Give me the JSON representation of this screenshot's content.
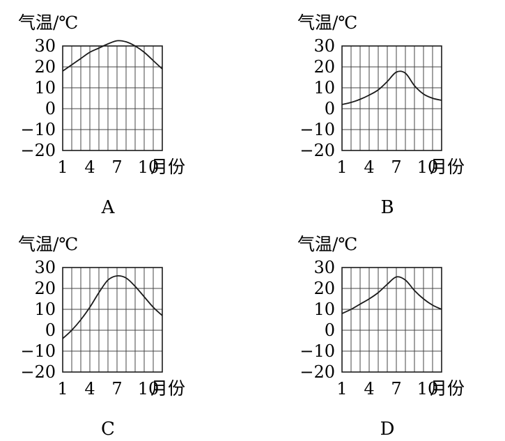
{
  "charts": [
    {
      "label": "A",
      "chart_data": {
        "type": "line",
        "ylabel": "气温/℃",
        "xlabel": "月份",
        "x_ticks": [
          "1",
          "4",
          "7",
          "10"
        ],
        "y_ticks": [
          "30",
          "20",
          "10",
          "0",
          "−10",
          "−20"
        ],
        "xlim": [
          1,
          12
        ],
        "ylim": [
          -20,
          30
        ],
        "grid": true,
        "x": [
          1,
          2,
          3,
          4,
          5,
          6,
          7,
          8,
          9,
          10,
          11,
          12
        ],
        "values": [
          18,
          21,
          24,
          27,
          29,
          31,
          32.5,
          32,
          30,
          27,
          23,
          19
        ]
      }
    },
    {
      "label": "B",
      "chart_data": {
        "type": "line",
        "ylabel": "气温/℃",
        "xlabel": "月份",
        "x_ticks": [
          "1",
          "4",
          "7",
          "10"
        ],
        "y_ticks": [
          "30",
          "20",
          "10",
          "0",
          "−10",
          "−20"
        ],
        "xlim": [
          1,
          12
        ],
        "ylim": [
          -20,
          30
        ],
        "grid": true,
        "x": [
          1,
          2,
          3,
          4,
          5,
          6,
          7,
          8,
          9,
          10,
          11,
          12
        ],
        "values": [
          2,
          3,
          4.5,
          6.5,
          9,
          13,
          17.5,
          17,
          11,
          7,
          5,
          4
        ]
      }
    },
    {
      "label": "C",
      "chart_data": {
        "type": "line",
        "ylabel": "气温/℃",
        "xlabel": "月份",
        "x_ticks": [
          "1",
          "4",
          "7",
          "10"
        ],
        "y_ticks": [
          "30",
          "20",
          "10",
          "0",
          "−10",
          "−20"
        ],
        "xlim": [
          1,
          12
        ],
        "ylim": [
          -20,
          30
        ],
        "grid": true,
        "x": [
          1,
          2,
          3,
          4,
          5,
          6,
          7,
          8,
          9,
          10,
          11,
          12
        ],
        "values": [
          -4,
          0,
          5,
          11,
          18,
          24,
          26,
          25,
          21,
          16,
          11,
          7
        ]
      }
    },
    {
      "label": "D",
      "chart_data": {
        "type": "line",
        "ylabel": "气温/℃",
        "xlabel": "月份",
        "x_ticks": [
          "1",
          "4",
          "7",
          "10"
        ],
        "y_ticks": [
          "30",
          "20",
          "10",
          "0",
          "−10",
          "−20"
        ],
        "xlim": [
          1,
          12
        ],
        "ylim": [
          -20,
          30
        ],
        "grid": true,
        "x": [
          1,
          2,
          3,
          4,
          5,
          6,
          7,
          8,
          9,
          10,
          11,
          12
        ],
        "values": [
          8,
          10,
          12.5,
          15,
          18,
          22,
          25.5,
          24,
          19,
          15,
          12,
          10
        ]
      }
    }
  ],
  "colors": {
    "line": "#1a1a1a",
    "grid": "#444444"
  }
}
